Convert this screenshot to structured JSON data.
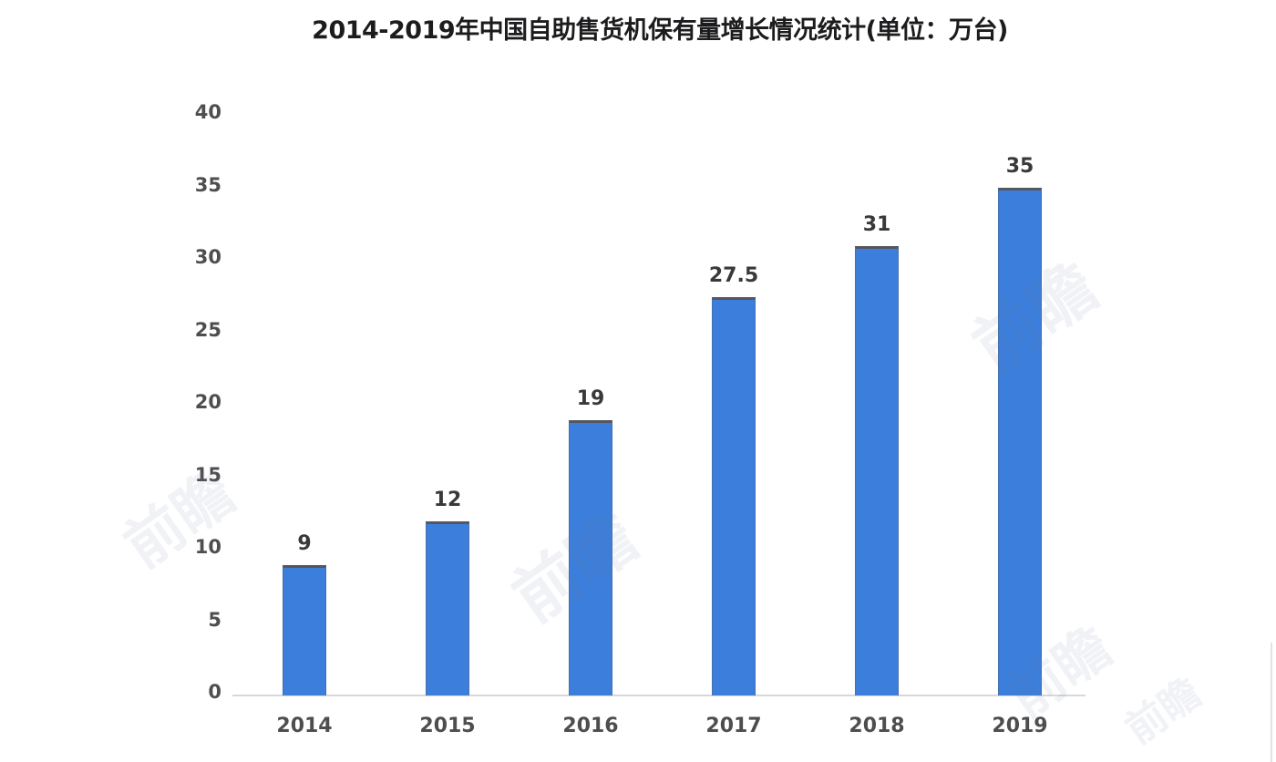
{
  "title": "2014-2019年中国自助售货机保有量增长情况统计(单位：万台)",
  "watermark": {
    "text": "前瞻"
  },
  "chart_data": {
    "type": "bar",
    "title": "2014-2019年中国自助售货机保有量增长情况统计(单位：万台)",
    "unit": "万台",
    "categories": [
      "2014",
      "2015",
      "2016",
      "2017",
      "2018",
      "2019"
    ],
    "values": [
      9,
      12,
      19,
      27.5,
      31,
      35
    ],
    "value_labels": [
      "9",
      "12",
      "19",
      "27.5",
      "31",
      "35"
    ],
    "xlabel": "",
    "ylabel": "",
    "ylim": [
      0,
      40
    ],
    "yticks": [
      0,
      5,
      10,
      15,
      20,
      25,
      30,
      35,
      40
    ],
    "grid": false,
    "legend": null,
    "bar_color": "#3c7edb",
    "bar_top_edge_color": "#55565e",
    "axis_line_color": "#d8d8d8",
    "tick_label_color": "#4e4e50",
    "value_label_color": "#39393b",
    "title_color": "#1c1c1e"
  }
}
